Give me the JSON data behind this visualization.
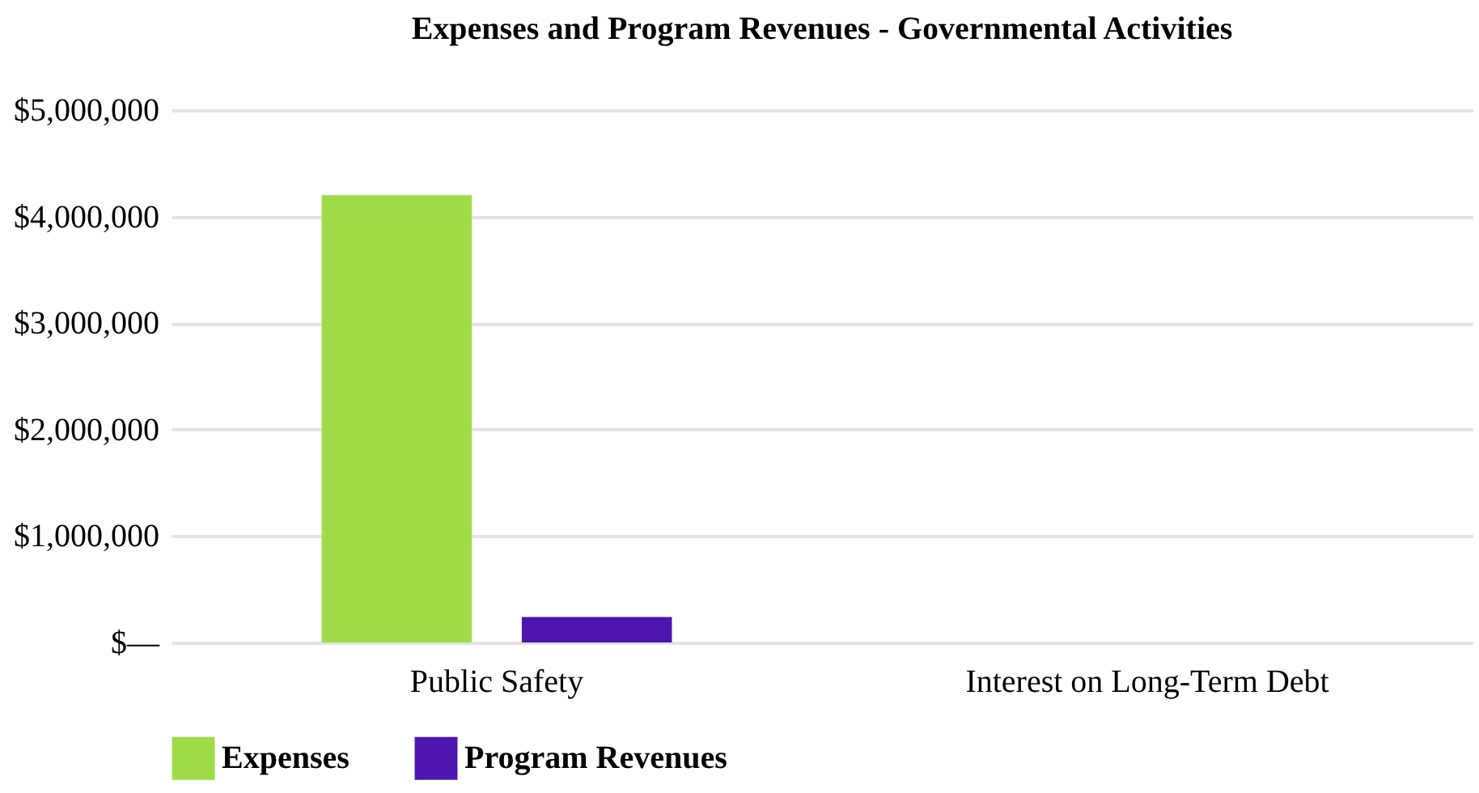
{
  "chart_data": {
    "type": "bar",
    "title": "Expenses and Program Revenues - Governmental Activities",
    "categories": [
      "Public Safety",
      "Interest on Long-Term Debt"
    ],
    "series": [
      {
        "name": "Expenses",
        "color": "#9edc47",
        "values": [
          4200000,
          0
        ]
      },
      {
        "name": "Program Revenues",
        "color": "#4d16b0",
        "values": [
          240000,
          0
        ]
      }
    ],
    "ylim": [
      0,
      5000000
    ],
    "yticks": [
      {
        "value": 0,
        "label": "$—"
      },
      {
        "value": 1000000,
        "label": "$1,000,000"
      },
      {
        "value": 2000000,
        "label": "$2,000,000"
      },
      {
        "value": 3000000,
        "label": "$3,000,000"
      },
      {
        "value": 4000000,
        "label": "$4,000,000"
      },
      {
        "value": 5000000,
        "label": "$5,000,000"
      }
    ],
    "grid": "y",
    "legend": "bottom"
  }
}
